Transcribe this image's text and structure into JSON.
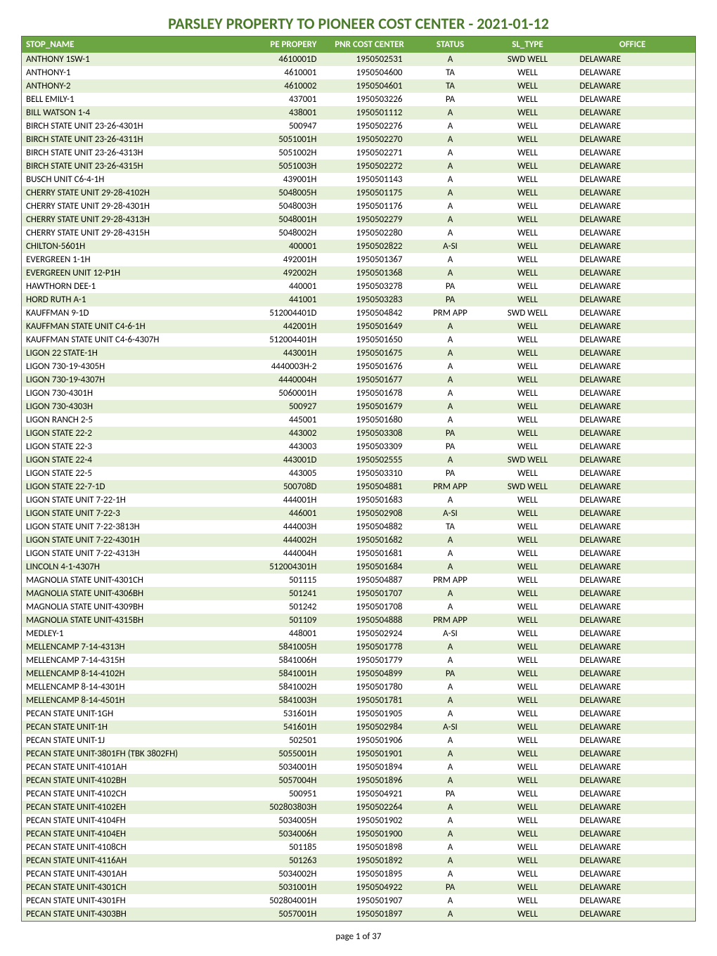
{
  "title": "PARSLEY PROPERTY TO PIONEER COST CENTER - 2021-01-12",
  "footer": "page 1 of 37",
  "colors": {
    "header_bg": "#6ba643",
    "header_fg": "#ffffff",
    "row_odd_bg": "#e6efd8",
    "row_even_bg": "#ffffff",
    "title_color": "#4a7a2a",
    "border_color": "#666666"
  },
  "columns": [
    {
      "key": "name",
      "label": "STOP_NAME",
      "align": "left"
    },
    {
      "key": "prop",
      "label": "PE PROPERY",
      "align": "right"
    },
    {
      "key": "cost",
      "label": "PNR COST CENTER",
      "align": "right"
    },
    {
      "key": "status",
      "label": "STATUS",
      "align": "center"
    },
    {
      "key": "type",
      "label": "SL_TYPE",
      "align": "center"
    },
    {
      "key": "office",
      "label": "OFFICE",
      "align": "left"
    }
  ],
  "rows": [
    {
      "name": "ANTHONY 1SW-1",
      "prop": "4610001D",
      "cost": "1950502531",
      "status": "A",
      "type": "SWD WELL",
      "office": "DELAWARE"
    },
    {
      "name": "ANTHONY-1",
      "prop": "4610001",
      "cost": "1950504600",
      "status": "TA",
      "type": "WELL",
      "office": "DELAWARE"
    },
    {
      "name": "ANTHONY-2",
      "prop": "4610002",
      "cost": "1950504601",
      "status": "TA",
      "type": "WELL",
      "office": "DELAWARE"
    },
    {
      "name": "BELL EMILY-1",
      "prop": "437001",
      "cost": "1950503226",
      "status": "PA",
      "type": "WELL",
      "office": "DELAWARE"
    },
    {
      "name": "BILL WATSON 1-4",
      "prop": "438001",
      "cost": "1950501112",
      "status": "A",
      "type": "WELL",
      "office": "DELAWARE"
    },
    {
      "name": "BIRCH STATE UNIT 23-26-4301H",
      "prop": "500947",
      "cost": "1950502276",
      "status": "A",
      "type": "WELL",
      "office": "DELAWARE"
    },
    {
      "name": "BIRCH STATE UNIT 23-26-4311H",
      "prop": "5051001H",
      "cost": "1950502270",
      "status": "A",
      "type": "WELL",
      "office": "DELAWARE"
    },
    {
      "name": "BIRCH STATE UNIT 23-26-4313H",
      "prop": "5051002H",
      "cost": "1950502271",
      "status": "A",
      "type": "WELL",
      "office": "DELAWARE"
    },
    {
      "name": "BIRCH STATE UNIT 23-26-4315H",
      "prop": "5051003H",
      "cost": "1950502272",
      "status": "A",
      "type": "WELL",
      "office": "DELAWARE"
    },
    {
      "name": "BUSCH UNIT C6-4-1H",
      "prop": "439001H",
      "cost": "1950501143",
      "status": "A",
      "type": "WELL",
      "office": "DELAWARE"
    },
    {
      "name": "CHERRY STATE UNIT 29-28-4102H",
      "prop": "5048005H",
      "cost": "1950501175",
      "status": "A",
      "type": "WELL",
      "office": "DELAWARE"
    },
    {
      "name": "CHERRY STATE UNIT 29-28-4301H",
      "prop": "5048003H",
      "cost": "1950501176",
      "status": "A",
      "type": "WELL",
      "office": "DELAWARE"
    },
    {
      "name": "CHERRY STATE UNIT 29-28-4313H",
      "prop": "5048001H",
      "cost": "1950502279",
      "status": "A",
      "type": "WELL",
      "office": "DELAWARE"
    },
    {
      "name": "CHERRY STATE UNIT 29-28-4315H",
      "prop": "5048002H",
      "cost": "1950502280",
      "status": "A",
      "type": "WELL",
      "office": "DELAWARE"
    },
    {
      "name": "CHILTON-5601H",
      "prop": "400001",
      "cost": "1950502822",
      "status": "A-SI",
      "type": "WELL",
      "office": "DELAWARE"
    },
    {
      "name": "EVERGREEN 1-1H",
      "prop": "492001H",
      "cost": "1950501367",
      "status": "A",
      "type": "WELL",
      "office": "DELAWARE"
    },
    {
      "name": "EVERGREEN UNIT 12-P1H",
      "prop": "492002H",
      "cost": "1950501368",
      "status": "A",
      "type": "WELL",
      "office": "DELAWARE"
    },
    {
      "name": "HAWTHORN DEE-1",
      "prop": "440001",
      "cost": "1950503278",
      "status": "PA",
      "type": "WELL",
      "office": "DELAWARE"
    },
    {
      "name": "HORD RUTH A-1",
      "prop": "441001",
      "cost": "1950503283",
      "status": "PA",
      "type": "WELL",
      "office": "DELAWARE"
    },
    {
      "name": "KAUFFMAN 9-1D",
      "prop": "512004401D",
      "cost": "1950504842",
      "status": "PRM APP",
      "type": "SWD WELL",
      "office": "DELAWARE"
    },
    {
      "name": "KAUFFMAN STATE UNIT C4-6-1H",
      "prop": "442001H",
      "cost": "1950501649",
      "status": "A",
      "type": "WELL",
      "office": "DELAWARE"
    },
    {
      "name": "KAUFFMAN STATE UNIT C4-6-4307H",
      "prop": "512004401H",
      "cost": "1950501650",
      "status": "A",
      "type": "WELL",
      "office": "DELAWARE"
    },
    {
      "name": "LIGON 22 STATE-1H",
      "prop": "443001H",
      "cost": "1950501675",
      "status": "A",
      "type": "WELL",
      "office": "DELAWARE"
    },
    {
      "name": "LIGON 730-19-4305H",
      "prop": "4440003H-2",
      "cost": "1950501676",
      "status": "A",
      "type": "WELL",
      "office": "DELAWARE"
    },
    {
      "name": "LIGON 730-19-4307H",
      "prop": "4440004H",
      "cost": "1950501677",
      "status": "A",
      "type": "WELL",
      "office": "DELAWARE"
    },
    {
      "name": "LIGON 730-4301H",
      "prop": "5060001H",
      "cost": "1950501678",
      "status": "A",
      "type": "WELL",
      "office": "DELAWARE"
    },
    {
      "name": "LIGON 730-4303H",
      "prop": "500927",
      "cost": "1950501679",
      "status": "A",
      "type": "WELL",
      "office": "DELAWARE"
    },
    {
      "name": "LIGON RANCH 2-5",
      "prop": "445001",
      "cost": "1950501680",
      "status": "A",
      "type": "WELL",
      "office": "DELAWARE"
    },
    {
      "name": "LIGON STATE 22-2",
      "prop": "443002",
      "cost": "1950503308",
      "status": "PA",
      "type": "WELL",
      "office": "DELAWARE"
    },
    {
      "name": "LIGON STATE 22-3",
      "prop": "443003",
      "cost": "1950503309",
      "status": "PA",
      "type": "WELL",
      "office": "DELAWARE"
    },
    {
      "name": "LIGON STATE 22-4",
      "prop": "443001D",
      "cost": "1950502555",
      "status": "A",
      "type": "SWD WELL",
      "office": "DELAWARE"
    },
    {
      "name": "LIGON STATE 22-5",
      "prop": "443005",
      "cost": "1950503310",
      "status": "PA",
      "type": "WELL",
      "office": "DELAWARE"
    },
    {
      "name": "LIGON STATE 22-7-1D",
      "prop": "500708D",
      "cost": "1950504881",
      "status": "PRM APP",
      "type": "SWD WELL",
      "office": "DELAWARE"
    },
    {
      "name": "LIGON STATE UNIT 7-22-1H",
      "prop": "444001H",
      "cost": "1950501683",
      "status": "A",
      "type": "WELL",
      "office": "DELAWARE"
    },
    {
      "name": "LIGON STATE UNIT 7-22-3",
      "prop": "446001",
      "cost": "1950502908",
      "status": "A-SI",
      "type": "WELL",
      "office": "DELAWARE"
    },
    {
      "name": "LIGON STATE UNIT 7-22-3813H",
      "prop": "444003H",
      "cost": "1950504882",
      "status": "TA",
      "type": "WELL",
      "office": "DELAWARE"
    },
    {
      "name": "LIGON STATE UNIT 7-22-4301H",
      "prop": "444002H",
      "cost": "1950501682",
      "status": "A",
      "type": "WELL",
      "office": "DELAWARE"
    },
    {
      "name": "LIGON STATE UNIT 7-22-4313H",
      "prop": "444004H",
      "cost": "1950501681",
      "status": "A",
      "type": "WELL",
      "office": "DELAWARE"
    },
    {
      "name": "LINCOLN 4-1-4307H",
      "prop": "512004301H",
      "cost": "1950501684",
      "status": "A",
      "type": "WELL",
      "office": "DELAWARE"
    },
    {
      "name": "MAGNOLIA STATE UNIT-4301CH",
      "prop": "501115",
      "cost": "1950504887",
      "status": "PRM APP",
      "type": "WELL",
      "office": "DELAWARE"
    },
    {
      "name": "MAGNOLIA STATE UNIT-4306BH",
      "prop": "501241",
      "cost": "1950501707",
      "status": "A",
      "type": "WELL",
      "office": "DELAWARE"
    },
    {
      "name": "MAGNOLIA STATE UNIT-4309BH",
      "prop": "501242",
      "cost": "1950501708",
      "status": "A",
      "type": "WELL",
      "office": "DELAWARE"
    },
    {
      "name": "MAGNOLIA STATE UNIT-4315BH",
      "prop": "501109",
      "cost": "1950504888",
      "status": "PRM APP",
      "type": "WELL",
      "office": "DELAWARE"
    },
    {
      "name": "MEDLEY-1",
      "prop": "448001",
      "cost": "1950502924",
      "status": "A-SI",
      "type": "WELL",
      "office": "DELAWARE"
    },
    {
      "name": "MELLENCAMP 7-14-4313H",
      "prop": "5841005H",
      "cost": "1950501778",
      "status": "A",
      "type": "WELL",
      "office": "DELAWARE"
    },
    {
      "name": "MELLENCAMP 7-14-4315H",
      "prop": "5841006H",
      "cost": "1950501779",
      "status": "A",
      "type": "WELL",
      "office": "DELAWARE"
    },
    {
      "name": "MELLENCAMP 8-14-4102H",
      "prop": "5841001H",
      "cost": "1950504899",
      "status": "PA",
      "type": "WELL",
      "office": "DELAWARE"
    },
    {
      "name": "MELLENCAMP 8-14-4301H",
      "prop": "5841002H",
      "cost": "1950501780",
      "status": "A",
      "type": "WELL",
      "office": "DELAWARE"
    },
    {
      "name": "MELLENCAMP 8-14-4501H",
      "prop": "5841003H",
      "cost": "1950501781",
      "status": "A",
      "type": "WELL",
      "office": "DELAWARE"
    },
    {
      "name": "PECAN STATE UNIT-1GH",
      "prop": "531601H",
      "cost": "1950501905",
      "status": "A",
      "type": "WELL",
      "office": "DELAWARE"
    },
    {
      "name": "PECAN STATE UNIT-1H",
      "prop": "541601H",
      "cost": "1950502984",
      "status": "A-SI",
      "type": "WELL",
      "office": "DELAWARE"
    },
    {
      "name": "PECAN STATE UNIT-1J",
      "prop": "502501",
      "cost": "1950501906",
      "status": "A",
      "type": "WELL",
      "office": "DELAWARE"
    },
    {
      "name": "PECAN STATE UNIT-3801FH (TBK 3802FH)",
      "prop": "5055001H",
      "cost": "1950501901",
      "status": "A",
      "type": "WELL",
      "office": "DELAWARE"
    },
    {
      "name": "PECAN STATE UNIT-4101AH",
      "prop": "5034001H",
      "cost": "1950501894",
      "status": "A",
      "type": "WELL",
      "office": "DELAWARE"
    },
    {
      "name": "PECAN STATE UNIT-4102BH",
      "prop": "5057004H",
      "cost": "1950501896",
      "status": "A",
      "type": "WELL",
      "office": "DELAWARE"
    },
    {
      "name": "PECAN STATE UNIT-4102CH",
      "prop": "500951",
      "cost": "1950504921",
      "status": "PA",
      "type": "WELL",
      "office": "DELAWARE"
    },
    {
      "name": "PECAN STATE UNIT-4102EH",
      "prop": "502803803H",
      "cost": "1950502264",
      "status": "A",
      "type": "WELL",
      "office": "DELAWARE"
    },
    {
      "name": "PECAN STATE UNIT-4104FH",
      "prop": "5034005H",
      "cost": "1950501902",
      "status": "A",
      "type": "WELL",
      "office": "DELAWARE"
    },
    {
      "name": "PECAN STATE UNIT-4104EH",
      "prop": "5034006H",
      "cost": "1950501900",
      "status": "A",
      "type": "WELL",
      "office": "DELAWARE"
    },
    {
      "name": "PECAN STATE UNIT-4108CH",
      "prop": "501185",
      "cost": "1950501898",
      "status": "A",
      "type": "WELL",
      "office": "DELAWARE"
    },
    {
      "name": "PECAN STATE UNIT-4116AH",
      "prop": "501263",
      "cost": "1950501892",
      "status": "A",
      "type": "WELL",
      "office": "DELAWARE"
    },
    {
      "name": "PECAN STATE UNIT-4301AH",
      "prop": "5034002H",
      "cost": "1950501895",
      "status": "A",
      "type": "WELL",
      "office": "DELAWARE"
    },
    {
      "name": "PECAN STATE UNIT-4301CH",
      "prop": "5031001H",
      "cost": "1950504922",
      "status": "PA",
      "type": "WELL",
      "office": "DELAWARE"
    },
    {
      "name": "PECAN STATE UNIT-4301FH",
      "prop": "502804001H",
      "cost": "1950501907",
      "status": "A",
      "type": "WELL",
      "office": "DELAWARE"
    },
    {
      "name": "PECAN STATE UNIT-4303BH",
      "prop": "5057001H",
      "cost": "1950501897",
      "status": "A",
      "type": "WELL",
      "office": "DELAWARE"
    }
  ]
}
